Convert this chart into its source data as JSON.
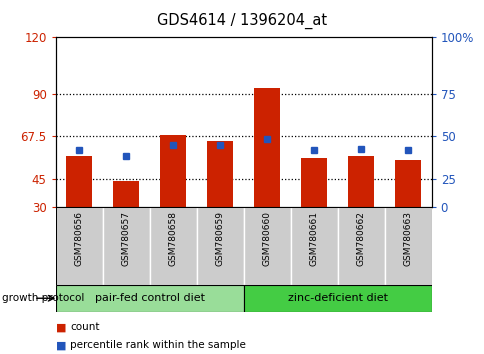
{
  "title": "GDS4614 / 1396204_at",
  "samples": [
    "GSM780656",
    "GSM780657",
    "GSM780658",
    "GSM780659",
    "GSM780660",
    "GSM780661",
    "GSM780662",
    "GSM780663"
  ],
  "red_counts": [
    57,
    44,
    68,
    65,
    93,
    56,
    57,
    55
  ],
  "blue_percentiles": [
    60,
    57,
    63,
    63,
    66,
    60,
    61,
    60
  ],
  "groups": [
    {
      "label": "pair-fed control diet",
      "start": 0,
      "end": 4,
      "color": "#99dd99"
    },
    {
      "label": "zinc-deficient diet",
      "start": 4,
      "end": 8,
      "color": "#44cc44"
    }
  ],
  "group_label": "growth protocol",
  "y_min": 30,
  "y_max": 120,
  "y_ticks_left": [
    30,
    45,
    67.5,
    90,
    120
  ],
  "y_ticks_right_vals": [
    0,
    25,
    50,
    75,
    100
  ],
  "dotted_lines": [
    45,
    67.5,
    90
  ],
  "bar_color": "#cc2200",
  "dot_color": "#2255bb",
  "bar_width": 0.55,
  "legend_items": [
    "count",
    "percentile rank within the sample"
  ]
}
